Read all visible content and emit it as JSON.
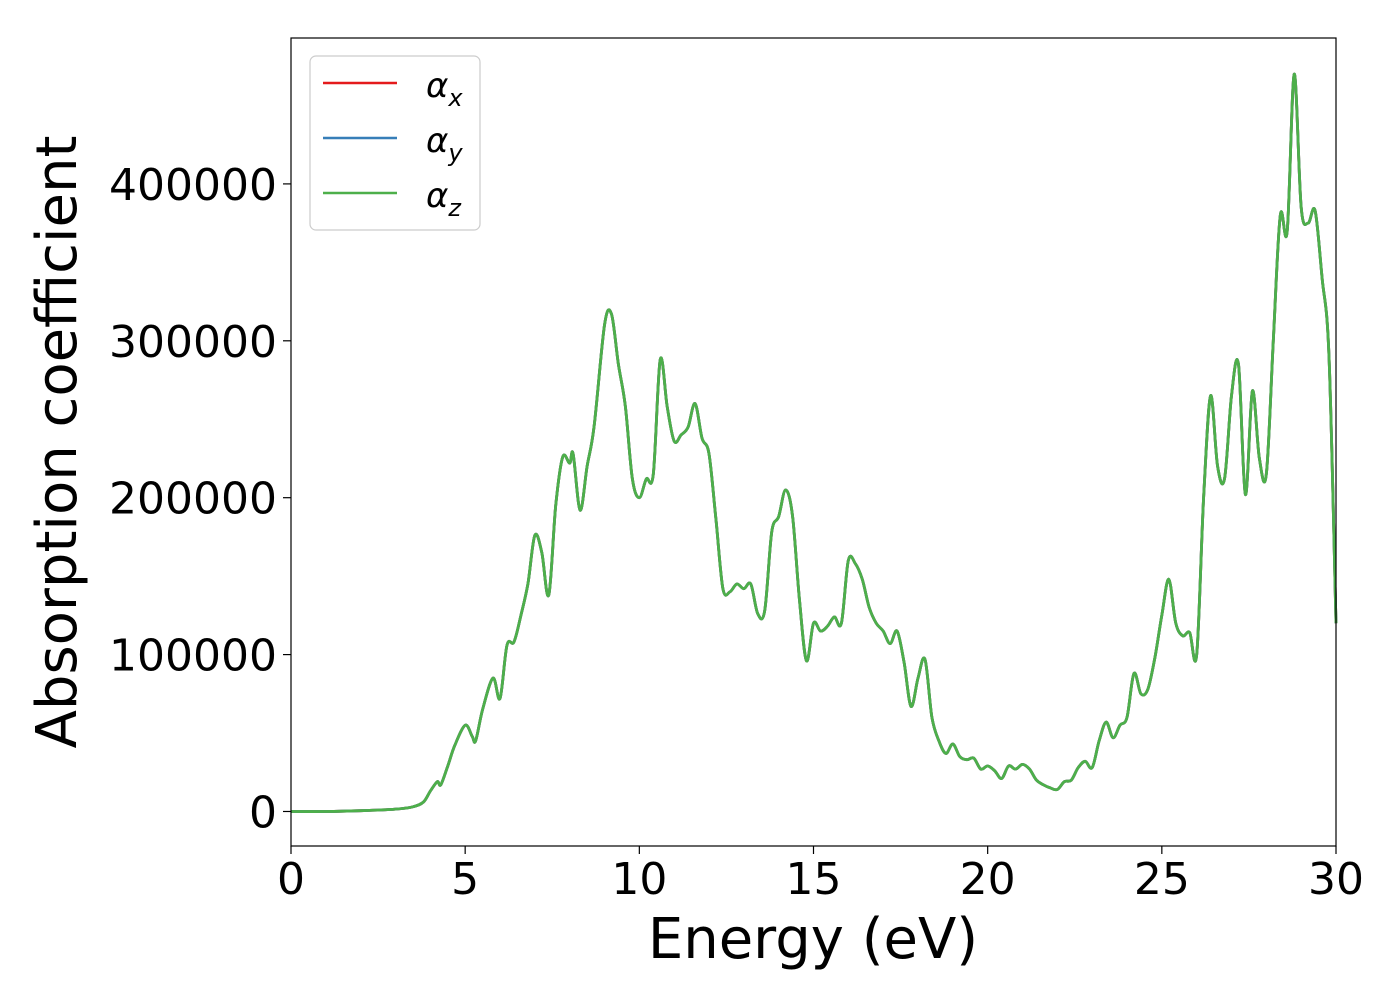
{
  "chart_data": {
    "type": "line",
    "xlabel": "Energy (eV)",
    "ylabel": "Absorption coefficient",
    "xlim": [
      0,
      30
    ],
    "ylim": [
      -22000,
      493000
    ],
    "xticks": [
      0,
      5,
      10,
      15,
      20,
      25,
      30
    ],
    "yticks": [
      0,
      100000,
      200000,
      300000,
      400000
    ],
    "grid": false,
    "legend_position": "top-left",
    "series": [
      {
        "name": "x",
        "color": "#e41a1c"
      },
      {
        "name": "y",
        "color": "#377eb8"
      },
      {
        "name": "z",
        "color": "#4daf4a"
      }
    ],
    "x": [
      0,
      1,
      2,
      3,
      3.5,
      3.8,
      4.0,
      4.2,
      4.3,
      4.5,
      4.7,
      5.0,
      5.2,
      5.3,
      5.5,
      5.8,
      6.0,
      6.2,
      6.4,
      6.6,
      6.8,
      7.0,
      7.2,
      7.4,
      7.6,
      7.8,
      8.0,
      8.1,
      8.3,
      8.5,
      8.7,
      9.0,
      9.2,
      9.4,
      9.6,
      9.8,
      10.0,
      10.2,
      10.4,
      10.6,
      10.8,
      11.0,
      11.2,
      11.4,
      11.6,
      11.8,
      12.0,
      12.2,
      12.4,
      12.6,
      12.8,
      13.0,
      13.2,
      13.4,
      13.6,
      13.8,
      14.0,
      14.2,
      14.4,
      14.6,
      14.8,
      15.0,
      15.2,
      15.4,
      15.6,
      15.8,
      16.0,
      16.2,
      16.4,
      16.6,
      16.8,
      17.0,
      17.2,
      17.4,
      17.6,
      17.8,
      18.0,
      18.2,
      18.4,
      18.6,
      18.8,
      19.0,
      19.2,
      19.4,
      19.6,
      19.8,
      20.0,
      20.2,
      20.4,
      20.6,
      20.8,
      21.0,
      21.2,
      21.4,
      21.6,
      21.8,
      22.0,
      22.2,
      22.4,
      22.6,
      22.8,
      23.0,
      23.2,
      23.4,
      23.6,
      23.8,
      24.0,
      24.2,
      24.4,
      24.6,
      24.8,
      25.0,
      25.2,
      25.4,
      25.6,
      25.8,
      26.0,
      26.2,
      26.4,
      26.6,
      26.8,
      27.0,
      27.2,
      27.4,
      27.6,
      27.8,
      28.0,
      28.2,
      28.4,
      28.6,
      28.8,
      29.0,
      29.2,
      29.4,
      29.6,
      29.8,
      30.0
    ],
    "y": [
      0,
      0,
      500,
      1500,
      3000,
      6000,
      13000,
      19000,
      17000,
      29000,
      42000,
      55000,
      48000,
      45000,
      65000,
      85000,
      72000,
      106000,
      108000,
      125000,
      145000,
      176000,
      165000,
      138000,
      195000,
      226000,
      222000,
      228000,
      192000,
      220000,
      245000,
      310000,
      317000,
      285000,
      258000,
      212000,
      200000,
      212000,
      215000,
      288000,
      258000,
      236000,
      240000,
      245000,
      260000,
      238000,
      228000,
      186000,
      142000,
      140000,
      145000,
      142000,
      145000,
      126000,
      128000,
      178000,
      188000,
      205000,
      188000,
      134000,
      96000,
      120000,
      115000,
      118000,
      124000,
      120000,
      160000,
      158000,
      148000,
      130000,
      120000,
      115000,
      107000,
      115000,
      95000,
      67000,
      85000,
      97000,
      60000,
      45000,
      37000,
      43000,
      35000,
      33000,
      34000,
      27000,
      29000,
      26000,
      21000,
      29000,
      27000,
      30000,
      27000,
      20000,
      17000,
      15000,
      14000,
      19000,
      20000,
      28000,
      32000,
      28000,
      45000,
      57000,
      47000,
      55000,
      60000,
      88000,
      75000,
      78000,
      98000,
      125000,
      148000,
      120000,
      112000,
      114000,
      100000,
      200000,
      265000,
      220000,
      212000,
      265000,
      285000,
      202000,
      268000,
      225000,
      215000,
      300000,
      380000,
      370000,
      470000,
      385000,
      375000,
      383000,
      340000,
      290000,
      120000
    ],
    "legend_labels": [
      "α",
      "α",
      "α"
    ]
  }
}
